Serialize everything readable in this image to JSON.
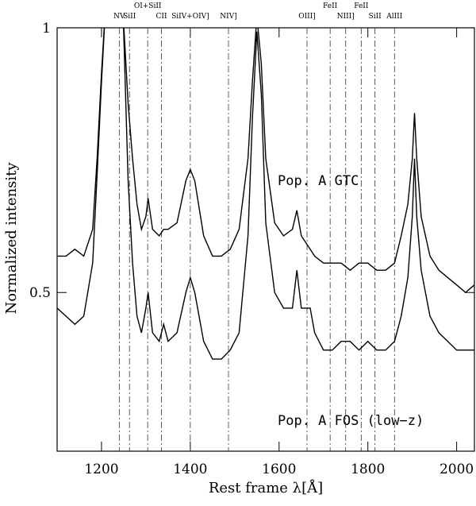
{
  "chart_data": {
    "type": "line",
    "xlabel": "Rest frame λ[Å]",
    "ylabel": "Normalized intensity",
    "xlim": [
      1100,
      2040
    ],
    "ylim": [
      0.33,
      1
    ],
    "ylog": true,
    "xticks": [
      1200,
      1400,
      1600,
      1800,
      2000
    ],
    "yticks": [
      0.5,
      1
    ],
    "x": [
      1100,
      1120,
      1140,
      1160,
      1180,
      1190,
      1200,
      1210,
      1240,
      1250,
      1260,
      1270,
      1280,
      1290,
      1300,
      1305,
      1315,
      1330,
      1340,
      1350,
      1370,
      1390,
      1400,
      1410,
      1430,
      1450,
      1470,
      1490,
      1510,
      1530,
      1540,
      1550,
      1560,
      1570,
      1590,
      1610,
      1630,
      1640,
      1650,
      1670,
      1680,
      1700,
      1720,
      1740,
      1760,
      1780,
      1800,
      1820,
      1840,
      1860,
      1875,
      1890,
      1900,
      1905,
      1910,
      1920,
      1940,
      1960,
      1980,
      2000,
      2020,
      2040
    ],
    "series": [
      {
        "name": "Pop. A GTC",
        "color": "#000000",
        "values": [
          0.55,
          0.55,
          0.56,
          0.55,
          0.59,
          0.71,
          0.89,
          1.08,
          1.32,
          1.01,
          0.82,
          0.71,
          0.63,
          0.59,
          0.61,
          0.64,
          0.59,
          0.58,
          0.59,
          0.59,
          0.6,
          0.67,
          0.69,
          0.67,
          0.58,
          0.55,
          0.55,
          0.56,
          0.59,
          0.71,
          0.87,
          1.03,
          0.91,
          0.71,
          0.6,
          0.58,
          0.59,
          0.62,
          0.58,
          0.56,
          0.55,
          0.54,
          0.54,
          0.54,
          0.53,
          0.54,
          0.54,
          0.53,
          0.53,
          0.54,
          0.58,
          0.63,
          0.71,
          0.8,
          0.71,
          0.61,
          0.55,
          0.53,
          0.52,
          0.51,
          0.5,
          0.51
        ]
      },
      {
        "name": "Pop. A FOS (low−z)",
        "color": "#000000",
        "values": [
          0.48,
          0.47,
          0.46,
          0.47,
          0.54,
          0.68,
          0.87,
          1.08,
          1.32,
          0.99,
          0.67,
          0.54,
          0.47,
          0.45,
          0.48,
          0.5,
          0.45,
          0.44,
          0.46,
          0.44,
          0.45,
          0.5,
          0.52,
          0.5,
          0.44,
          0.42,
          0.42,
          0.43,
          0.45,
          0.58,
          0.79,
          0.99,
          0.84,
          0.6,
          0.5,
          0.48,
          0.48,
          0.53,
          0.48,
          0.48,
          0.45,
          0.43,
          0.43,
          0.44,
          0.44,
          0.43,
          0.44,
          0.43,
          0.43,
          0.44,
          0.47,
          0.52,
          0.61,
          0.71,
          0.61,
          0.53,
          0.47,
          0.45,
          0.44,
          0.43,
          0.43,
          0.43
        ]
      }
    ],
    "lines": [
      {
        "label": "NV",
        "x": 1240
      },
      {
        "label": "SiII",
        "x": 1263
      },
      {
        "label": "OI+SiII",
        "x": 1304
      },
      {
        "label": "CII",
        "x": 1335
      },
      {
        "label": "SiIV+OIV]",
        "x": 1400
      },
      {
        "label": "NIV]",
        "x": 1486
      },
      {
        "label": "OIII]",
        "x": 1663
      },
      {
        "label": "FeII",
        "x": 1715
      },
      {
        "label": "NIII]",
        "x": 1750
      },
      {
        "label": "FeII",
        "x": 1785
      },
      {
        "label": "SiII",
        "x": 1816
      },
      {
        "label": "AlIII",
        "x": 1860
      }
    ]
  }
}
